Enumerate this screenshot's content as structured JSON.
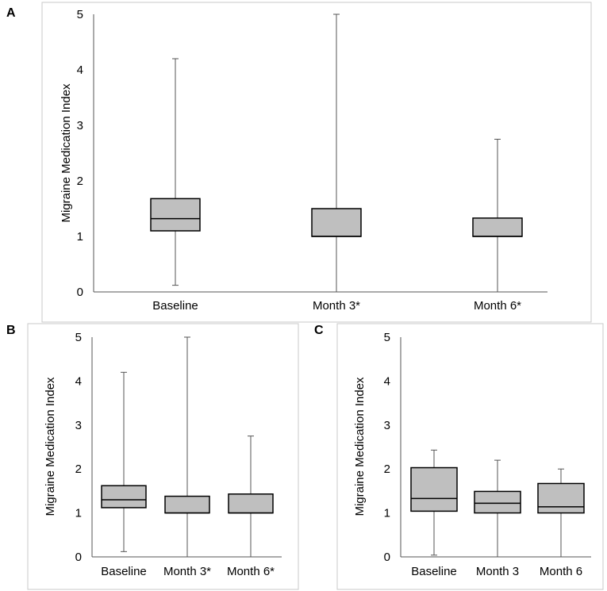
{
  "chart_data": [
    {
      "panel": "A",
      "type": "box",
      "ylabel": "Migraine Medication Index",
      "ylim": [
        0,
        5
      ],
      "yticks": [
        0,
        1,
        2,
        3,
        4,
        5
      ],
      "categories": [
        "Baseline",
        "Month 3*",
        "Month 6*"
      ],
      "boxes": [
        {
          "min": 0.12,
          "q1": 1.1,
          "median": 1.32,
          "q3": 1.68,
          "max": 4.2
        },
        {
          "min": 0.0,
          "q1": 1.0,
          "median": 1.0,
          "q3": 1.5,
          "max": 5.0
        },
        {
          "min": 0.0,
          "q1": 1.0,
          "median": 1.0,
          "q3": 1.33,
          "max": 2.75
        }
      ]
    },
    {
      "panel": "B",
      "type": "box",
      "ylabel": "Migraine Medication Index",
      "ylim": [
        0,
        5
      ],
      "yticks": [
        0,
        1,
        2,
        3,
        4,
        5
      ],
      "categories": [
        "Baseline",
        "Month 3*",
        "Month 6*"
      ],
      "boxes": [
        {
          "min": 0.12,
          "q1": 1.12,
          "median": 1.3,
          "q3": 1.62,
          "max": 4.2
        },
        {
          "min": 0.0,
          "q1": 1.0,
          "median": 1.0,
          "q3": 1.38,
          "max": 5.0
        },
        {
          "min": 0.0,
          "q1": 1.0,
          "median": 1.0,
          "q3": 1.43,
          "max": 2.75
        }
      ]
    },
    {
      "panel": "C",
      "type": "box",
      "ylabel": "Migraine Medication Index",
      "ylim": [
        0,
        5
      ],
      "yticks": [
        0,
        1,
        2,
        3,
        4,
        5
      ],
      "categories": [
        "Baseline",
        "Month 3",
        "Month 6"
      ],
      "boxes": [
        {
          "min": 0.04,
          "q1": 1.04,
          "median": 1.33,
          "q3": 2.03,
          "max": 2.43
        },
        {
          "min": 0.0,
          "q1": 1.0,
          "median": 1.22,
          "q3": 1.49,
          "max": 2.2
        },
        {
          "min": 0.0,
          "q1": 1.0,
          "median": 1.14,
          "q3": 1.67,
          "max": 2.0
        }
      ]
    }
  ],
  "colors": {
    "box_fill": "#bfbfbf",
    "box_stroke": "#000000",
    "whisker": "#555555",
    "border": "#c8c8c8"
  }
}
